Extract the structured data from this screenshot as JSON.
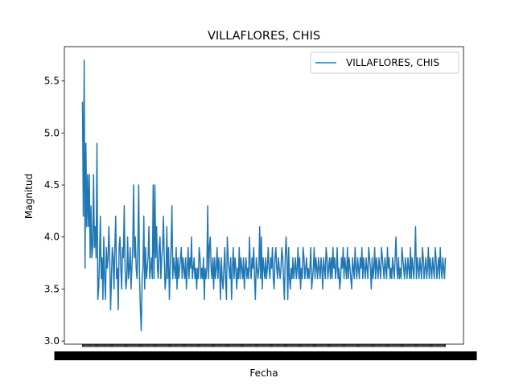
{
  "chart_data": {
    "type": "line",
    "title": "VILLAFLORES, CHIS",
    "xlabel": "Fecha",
    "ylabel": "Magnitud",
    "ylim": [
      2.97,
      5.83
    ],
    "yticks": [
      3.0,
      3.5,
      4.0,
      4.5,
      5.0,
      5.5
    ],
    "ytick_labels": [
      "3.0",
      "3.5",
      "4.0",
      "4.5",
      "5.0",
      "5.5"
    ],
    "grid": false,
    "legend": {
      "placement": "upper right",
      "entries": [
        "VILLAFLORES, CHIS"
      ]
    },
    "colors": {
      "series": "#1f77b4",
      "axes": "#000000",
      "background": "#ffffff"
    },
    "series": [
      {
        "name": "VILLAFLORES, CHIS",
        "values": [
          5.3,
          4.2,
          5.7,
          3.7,
          4.9,
          4.1,
          4.6,
          4.1,
          4.6,
          3.8,
          4.3,
          3.8,
          3.9,
          4.6,
          3.9,
          4.1,
          3.8,
          4.9,
          3.4,
          3.5,
          3.8,
          4.2,
          3.6,
          3.8,
          3.4,
          4.0,
          3.6,
          3.4,
          3.9,
          3.7,
          3.8,
          4.1,
          3.8,
          3.3,
          3.6,
          3.9,
          3.8,
          3.5,
          3.9,
          4.2,
          3.6,
          3.7,
          3.3,
          3.9,
          4.0,
          3.7,
          3.5,
          3.9,
          3.8,
          4.3,
          3.7,
          3.5,
          3.6,
          4.0,
          3.6,
          3.7,
          3.9,
          3.5,
          3.7,
          3.9,
          4.5,
          3.8,
          4.0,
          3.7,
          3.6,
          3.9,
          4.5,
          3.6,
          3.3,
          3.1,
          3.6,
          3.7,
          4.2,
          3.5,
          3.9,
          3.6,
          3.7,
          3.8,
          4.1,
          3.6,
          3.7,
          3.8,
          3.6,
          4.5,
          3.6,
          4.5,
          3.8,
          4.1,
          3.7,
          3.6,
          3.9,
          4.0,
          3.6,
          3.8,
          3.9,
          4.2,
          3.8,
          3.5,
          3.6,
          4.1,
          3.6,
          3.9,
          3.4,
          3.7,
          3.9,
          4.3,
          3.6,
          3.8,
          3.7,
          3.6,
          3.9,
          3.5,
          3.8,
          3.6,
          3.7,
          3.8,
          3.9,
          3.6,
          3.8,
          3.7,
          3.6,
          3.8,
          3.5,
          3.7,
          3.9,
          3.6,
          3.8,
          3.7,
          4.0,
          3.6,
          3.7,
          3.8,
          3.6,
          3.7,
          3.5,
          3.7,
          3.6,
          3.9,
          3.8,
          3.6,
          3.7,
          3.6,
          3.8,
          3.4,
          3.7,
          3.6,
          3.7,
          4.3,
          3.6,
          3.9,
          4.0,
          3.7,
          3.6,
          3.8,
          3.5,
          3.8,
          3.6,
          3.7,
          3.9,
          3.6,
          3.8,
          3.7,
          3.4,
          3.8,
          3.6,
          3.5,
          3.7,
          3.9,
          3.6,
          3.4,
          4.0,
          3.8,
          3.7,
          3.6,
          3.8,
          3.4,
          3.7,
          3.9,
          3.6,
          3.8,
          3.7,
          3.5,
          3.7,
          3.6,
          3.9,
          3.6,
          3.8,
          3.7,
          3.6,
          3.8,
          3.5,
          3.7,
          3.8,
          3.6,
          3.7,
          3.6,
          4.0,
          3.7,
          3.6,
          3.8,
          3.7,
          3.9,
          3.6,
          3.4,
          3.8,
          3.7,
          3.6,
          3.7,
          4.1,
          3.6,
          4.0,
          3.5,
          3.8,
          3.7,
          3.6,
          3.8,
          3.6,
          3.7,
          3.9,
          3.7,
          3.6,
          3.8,
          3.7,
          3.9,
          3.6,
          3.5,
          3.8,
          3.9,
          3.7,
          3.6,
          3.8,
          3.7,
          3.6,
          3.7,
          3.9,
          3.8,
          3.6,
          3.4,
          3.8,
          4.0,
          3.8,
          3.4,
          3.9,
          3.6,
          3.5,
          3.7,
          3.6,
          3.8,
          3.6,
          3.7,
          3.8,
          3.6,
          3.7,
          3.9,
          3.6,
          3.8,
          3.5,
          3.7,
          3.6,
          3.9,
          3.8,
          3.6,
          3.7,
          3.8,
          3.6,
          3.7,
          3.6,
          3.7,
          3.9,
          3.5,
          3.6,
          3.7,
          3.9,
          3.6,
          3.8,
          3.7,
          3.6,
          3.8,
          3.7,
          3.6,
          3.8,
          3.7,
          3.5,
          3.8,
          3.7,
          3.6,
          3.9,
          3.8,
          3.6,
          3.7,
          3.8,
          3.6,
          3.8,
          3.6,
          3.9,
          3.7,
          3.8,
          3.6,
          3.7,
          3.9,
          3.6,
          3.7,
          3.5,
          3.6,
          3.8,
          3.7,
          3.9,
          3.6,
          3.8,
          3.7,
          3.6,
          3.9,
          3.6,
          3.8,
          3.7,
          3.6,
          3.5,
          3.8,
          3.7,
          3.6,
          3.9,
          3.7,
          3.6,
          3.8,
          3.7,
          3.6,
          3.8,
          3.7,
          3.9,
          3.6,
          3.8,
          3.7,
          3.6,
          3.8,
          3.7,
          3.6,
          3.9,
          3.8,
          3.7,
          3.5,
          3.8,
          3.6,
          3.7,
          3.9,
          3.6,
          3.8,
          3.7,
          3.6,
          3.8,
          3.7,
          3.6,
          3.9,
          3.8,
          3.7,
          3.6,
          3.8,
          3.7,
          3.6,
          3.9,
          3.7,
          3.8,
          3.6,
          3.7,
          3.6,
          3.8,
          3.7,
          3.6,
          3.8,
          4.0,
          3.7,
          3.6,
          3.8,
          3.6,
          3.7,
          3.6,
          3.9,
          3.8,
          3.7,
          3.6,
          3.8,
          3.7,
          3.6,
          3.8,
          3.7,
          3.6,
          3.9,
          3.6,
          3.8,
          3.7,
          3.6,
          3.8,
          4.1,
          3.6,
          3.8,
          3.7,
          3.6,
          3.8,
          3.7,
          3.6,
          3.9,
          3.8,
          3.6,
          3.7,
          3.8,
          3.6,
          3.7,
          3.9,
          3.6,
          3.8,
          3.7,
          3.6,
          3.8,
          3.7,
          3.6,
          3.9,
          3.8,
          3.6,
          3.7,
          3.8,
          3.6,
          3.9,
          3.7,
          3.6,
          3.8,
          3.7,
          3.6,
          3.8
        ]
      }
    ]
  }
}
